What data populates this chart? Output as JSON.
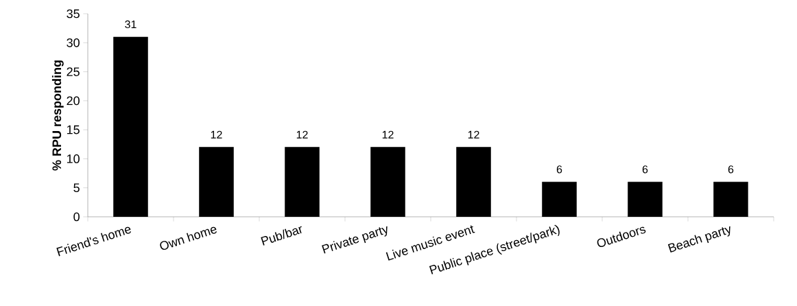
{
  "chart_data": {
    "type": "bar",
    "ylabel": "% RPU responding",
    "categories": [
      "Friend's home",
      "Own home",
      "Pub/bar",
      "Private party",
      "Live music event",
      "Public place (street/park)",
      "Outdoors",
      "Beach party"
    ],
    "values": [
      31,
      12,
      12,
      12,
      12,
      6,
      6,
      6
    ],
    "color": "#000000",
    "ylim": [
      0,
      35
    ],
    "yticks": [
      0,
      5,
      10,
      15,
      20,
      25,
      30,
      35
    ],
    "data_labels": true
  }
}
